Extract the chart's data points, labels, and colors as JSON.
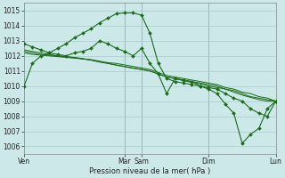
{
  "bg_color": "#cce8e8",
  "grid_color": "#aacccc",
  "line_color": "#1a6b1a",
  "title": "Pression niveau de la mer( hPa )",
  "ylim": [
    1005.5,
    1015.5
  ],
  "yticks": [
    1006,
    1007,
    1008,
    1009,
    1010,
    1011,
    1012,
    1013,
    1014,
    1015
  ],
  "xtick_labels": [
    "Ven",
    "Mar",
    "Sam",
    "Dim",
    "Lun"
  ],
  "xtick_positions": [
    0,
    12,
    14,
    22,
    30
  ],
  "vlines": [
    12,
    14,
    22,
    30
  ],
  "series": [
    [
      1010.0,
      1011.5,
      1012.0,
      1012.2,
      1012.5,
      1012.8,
      1013.2,
      1013.5,
      1013.8,
      1014.2,
      1014.5,
      1014.8,
      1014.85,
      1014.85,
      1014.7,
      1013.5,
      1011.5,
      1010.5,
      1010.3,
      1010.2,
      1010.1,
      1010.0,
      1009.9,
      1009.8,
      1009.5,
      1009.2,
      1009.0,
      1008.5,
      1008.2,
      1008.0,
      1009.0
    ],
    [
      1012.8,
      1012.6,
      1012.4,
      1012.2,
      1012.1,
      1012.0,
      1012.2,
      1012.3,
      1012.5,
      1013.0,
      1012.8,
      1012.5,
      1012.3,
      1012.0,
      1012.5,
      1011.5,
      1010.8,
      1009.5,
      1010.5,
      1010.4,
      1010.3,
      1010.0,
      1009.8,
      1009.5,
      1008.8,
      1008.2,
      1006.2,
      1006.8,
      1007.2,
      1008.5,
      1009.0
    ],
    [
      1012.2,
      1012.1,
      1012.05,
      1012.0,
      1011.95,
      1011.9,
      1011.85,
      1011.8,
      1011.75,
      1011.65,
      1011.55,
      1011.5,
      1011.4,
      1011.3,
      1011.2,
      1011.1,
      1010.9,
      1010.7,
      1010.6,
      1010.5,
      1010.4,
      1010.3,
      1010.2,
      1010.1,
      1009.9,
      1009.8,
      1009.6,
      1009.5,
      1009.3,
      1009.2,
      1009.0
    ],
    [
      1012.3,
      1012.2,
      1012.1,
      1012.05,
      1012.0,
      1011.95,
      1011.88,
      1011.8,
      1011.72,
      1011.6,
      1011.5,
      1011.4,
      1011.3,
      1011.2,
      1011.1,
      1011.0,
      1010.8,
      1010.6,
      1010.5,
      1010.4,
      1010.3,
      1010.2,
      1010.1,
      1010.0,
      1009.8,
      1009.7,
      1009.5,
      1009.3,
      1009.2,
      1009.1,
      1009.0
    ],
    [
      1012.4,
      1012.3,
      1012.2,
      1012.1,
      1012.0,
      1011.95,
      1011.9,
      1011.82,
      1011.72,
      1011.6,
      1011.5,
      1011.38,
      1011.28,
      1011.18,
      1011.1,
      1011.0,
      1010.8,
      1010.6,
      1010.5,
      1010.35,
      1010.25,
      1010.15,
      1010.0,
      1009.9,
      1009.8,
      1009.6,
      1009.4,
      1009.25,
      1009.1,
      1009.0,
      1009.0
    ]
  ],
  "n_points": 31,
  "title_fontsize": 6.0,
  "tick_fontsize": 5.5
}
